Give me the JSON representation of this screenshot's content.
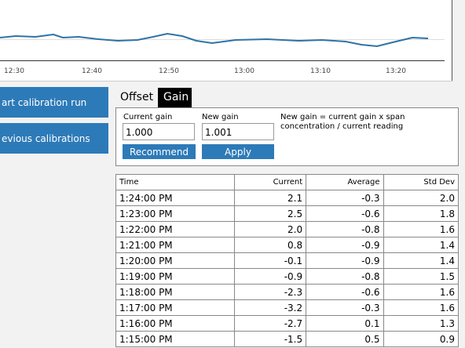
{
  "chart": {
    "xtick_labels": [
      "12:30",
      "12:40",
      "12:50",
      "13:00",
      "13:10",
      "13:20"
    ]
  },
  "sidebar": {
    "buttons": [
      "art calibration run",
      "evious calibrations"
    ]
  },
  "tabs": [
    "Offset",
    "Gain"
  ],
  "gain_panel": {
    "current_gain_label": "Current gain",
    "current_gain_value": "1.000",
    "new_gain_label": "New gain",
    "new_gain_value": "1.001",
    "formula_note": "New gain = current gain x span concentration / current reading",
    "recommend_button": "Recommend",
    "apply_button": "Apply"
  },
  "table": {
    "columns": [
      "Time",
      "Current",
      "Average",
      "Std Dev"
    ],
    "rows": [
      [
        "1:24:00 PM",
        "2.1",
        "-0.3",
        "2.0"
      ],
      [
        "1:23:00 PM",
        "2.5",
        "-0.6",
        "1.8"
      ],
      [
        "1:22:00 PM",
        "2.0",
        "-0.8",
        "1.6"
      ],
      [
        "1:21:00 PM",
        "0.8",
        "-0.9",
        "1.4"
      ],
      [
        "1:20:00 PM",
        "-0.1",
        "-0.9",
        "1.4"
      ],
      [
        "1:19:00 PM",
        "-0.9",
        "-0.8",
        "1.5"
      ],
      [
        "1:18:00 PM",
        "-2.3",
        "-0.6",
        "1.6"
      ],
      [
        "1:17:00 PM",
        "-3.2",
        "-0.3",
        "1.6"
      ],
      [
        "1:16:00 PM",
        "-2.7",
        "0.1",
        "1.3"
      ],
      [
        "1:15:00 PM",
        "-1.5",
        "0.5",
        "0.9"
      ]
    ]
  }
}
